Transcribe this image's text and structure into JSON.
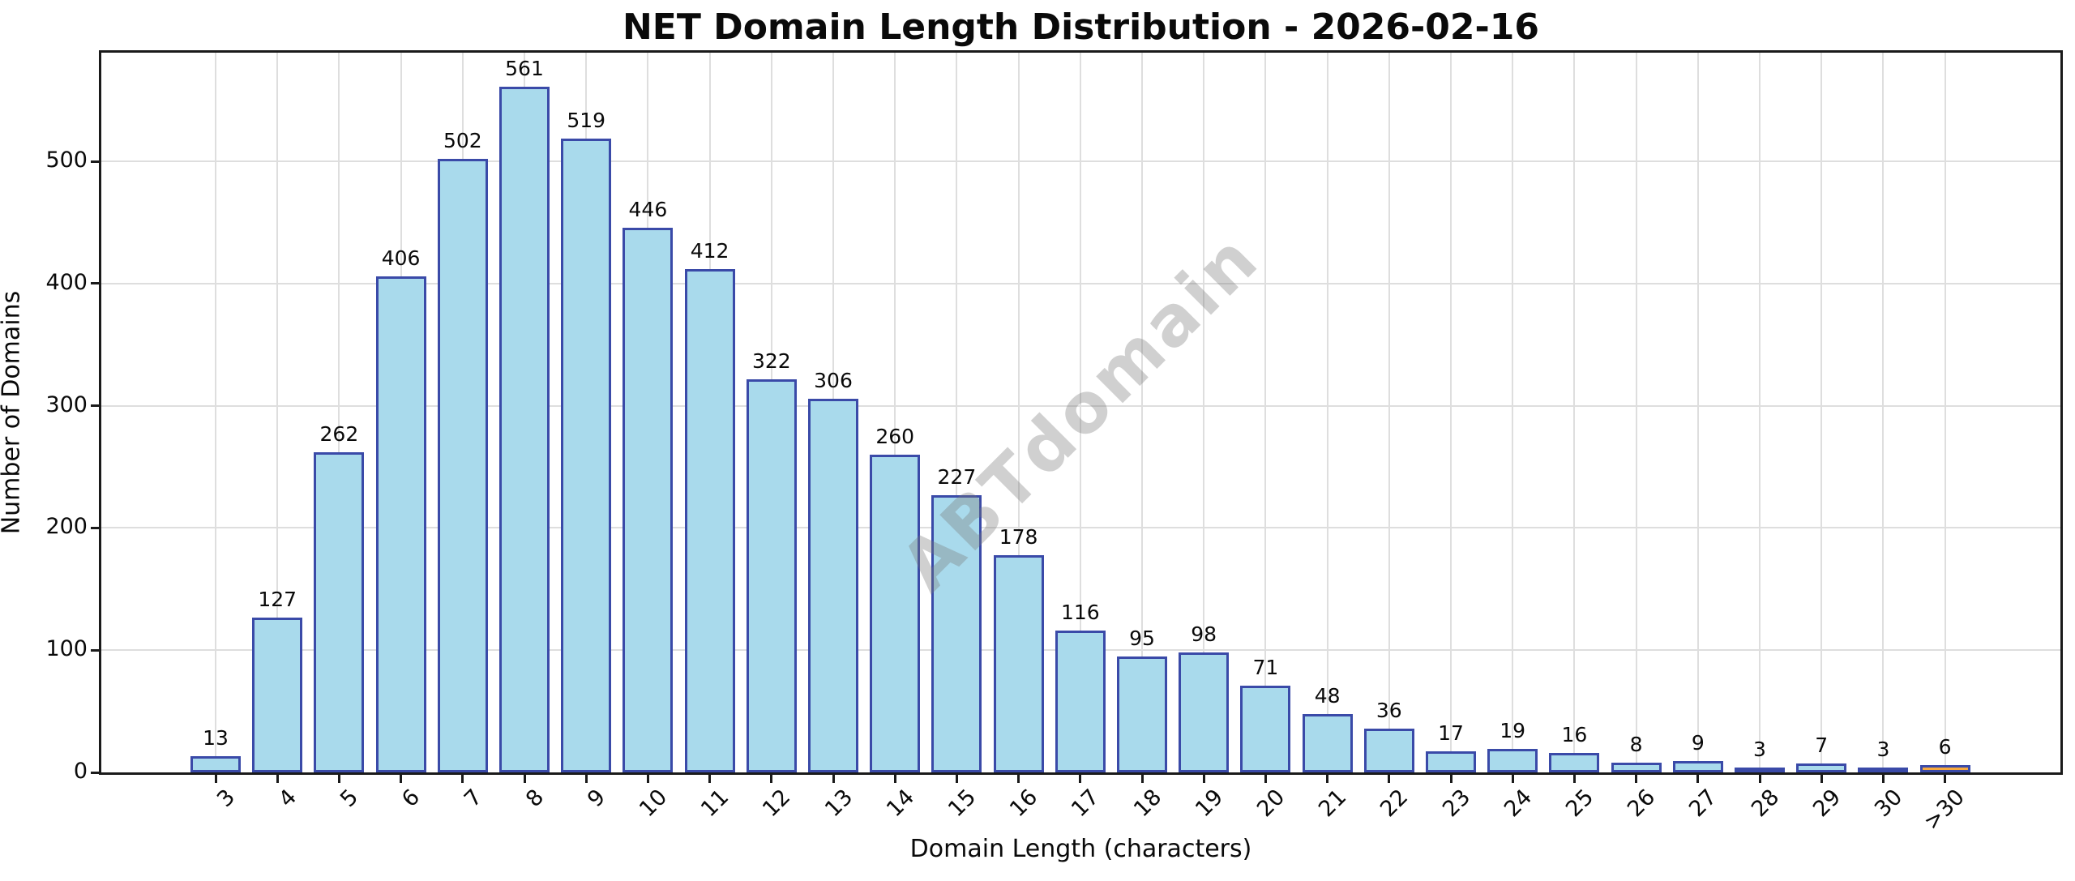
{
  "title": "NET Domain Length Distribution - 2026-02-16",
  "watermark": "ABTdomain",
  "chart_data": {
    "type": "bar",
    "title": "NET Domain Length Distribution - 2026-02-16",
    "xlabel": "Domain Length (characters)",
    "ylabel": "Number of Domains",
    "categories": [
      "3",
      "4",
      "5",
      "6",
      "7",
      "8",
      "9",
      "10",
      "11",
      "12",
      "13",
      "14",
      "15",
      "16",
      "17",
      "18",
      "19",
      "20",
      "21",
      "22",
      "23",
      "24",
      "25",
      "26",
      "27",
      "28",
      "29",
      "30",
      ">30"
    ],
    "values": [
      13,
      127,
      262,
      406,
      502,
      561,
      519,
      446,
      412,
      322,
      306,
      260,
      227,
      178,
      116,
      95,
      98,
      71,
      48,
      36,
      17,
      19,
      16,
      8,
      9,
      3,
      7,
      3,
      6
    ],
    "yticks": [
      0,
      100,
      200,
      300,
      400,
      500
    ],
    "ylim": [
      0,
      589
    ],
    "grid": true,
    "legend_position": "none",
    "bar_fill_color": "#A9DAEC",
    "bar_edge_color": "#3A4AA8",
    "highlight_index": 28,
    "highlight_fill_color": "#F7A93F",
    "grid_color": "#DEDEDE",
    "axis_color": "#1A1A1A",
    "watermark_color": "rgba(120,120,120,0.35)"
  }
}
